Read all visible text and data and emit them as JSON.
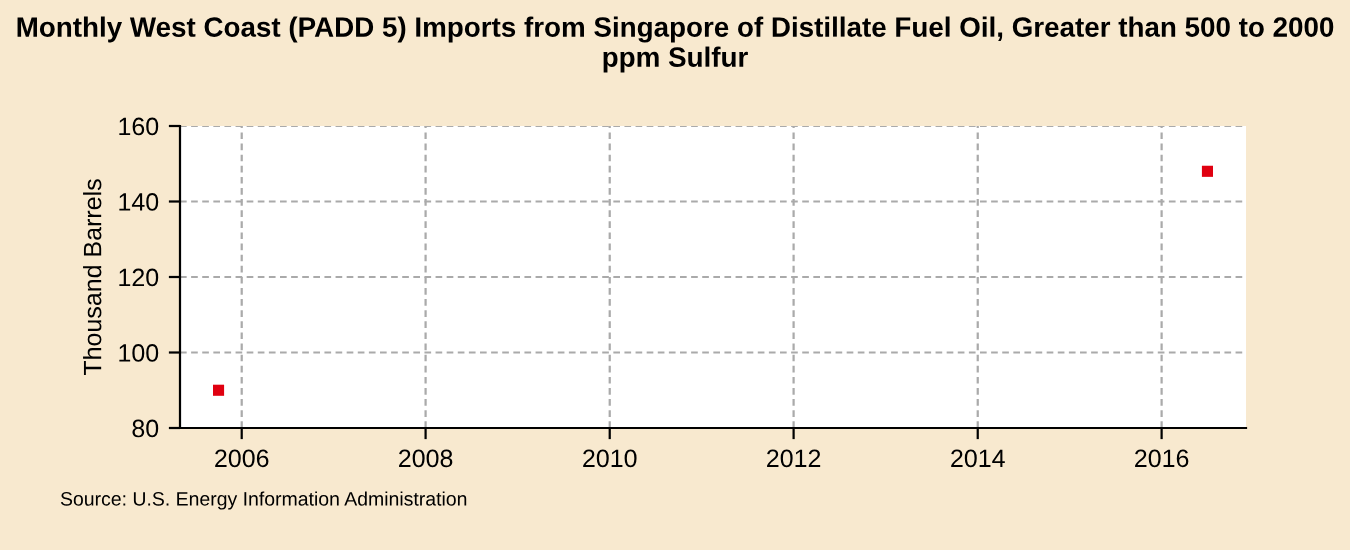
{
  "chart_data": {
    "type": "scatter",
    "title": "Monthly West Coast (PADD 5) Imports from Singapore of Distillate Fuel Oil, Greater than 500 to 2000 ppm Sulfur",
    "ylabel": "Thousand Barrels",
    "x": [
      "2005-10",
      "2016-07"
    ],
    "series": [
      {
        "color": "#e00010",
        "values": [
          90,
          148
        ]
      }
    ],
    "xlim": [
      "2005-05",
      "2016-12"
    ],
    "xticks": [
      "2006",
      "2008",
      "2010",
      "2012",
      "2014",
      "2016"
    ],
    "ylim": [
      80,
      160
    ],
    "yticks": [
      80,
      100,
      120,
      140,
      160
    ],
    "grid": true,
    "marker": "square",
    "annotations": [
      "Source: U.S. Energy Information Administration"
    ]
  }
}
